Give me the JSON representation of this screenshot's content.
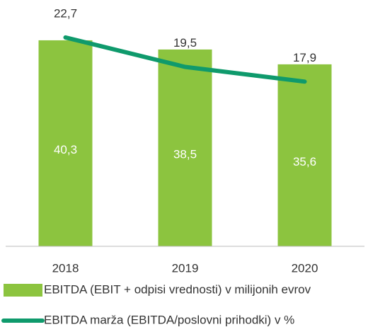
{
  "chart_data": {
    "type": "bar_line",
    "categories": [
      "2018",
      "2019",
      "2020"
    ],
    "series": [
      {
        "name": "EBITDA (EBIT + odpisi vrednosti) v milijonih evrov",
        "type": "bar",
        "color": "#8cc43f",
        "values": [
          40.3,
          38.5,
          35.6
        ],
        "value_labels": [
          "40,3",
          "38,5",
          "35,6"
        ]
      },
      {
        "name": "EBITDA marža (EBITDA/poslovni prihodki) v %",
        "type": "line",
        "axis": "y2",
        "color": "#0f9a6c",
        "values": [
          22.7,
          19.5,
          17.9
        ],
        "value_labels": [
          "22,7",
          "19,5",
          "17,9"
        ]
      }
    ],
    "ylim": [
      0,
      45
    ],
    "y2lim": [
      0,
      25
    ]
  }
}
